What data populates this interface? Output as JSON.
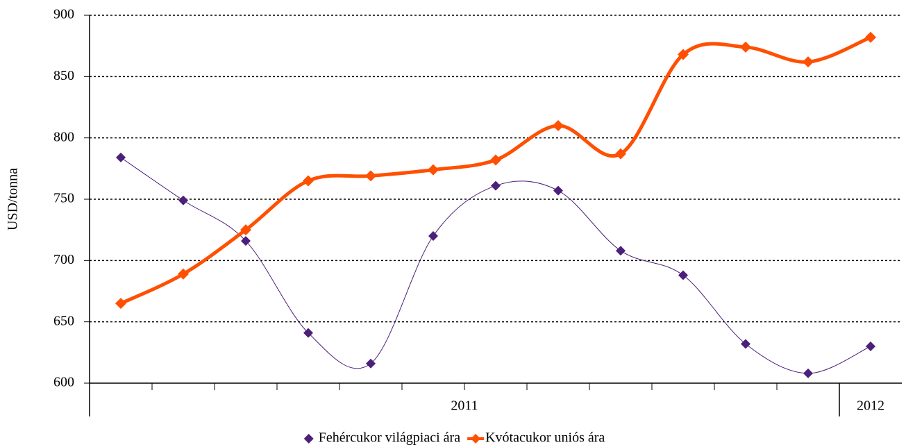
{
  "chart_data": {
    "type": "line",
    "y_label": "USD/tonna",
    "categories": [
      null,
      null,
      null,
      null,
      null,
      null,
      null,
      null,
      null,
      null,
      null,
      null,
      null
    ],
    "x_groups": [
      {
        "label": "2011",
        "count": 12
      },
      {
        "label": "2012",
        "count": 1
      }
    ],
    "series": [
      {
        "name": "Fehércukor világpiaci ára",
        "color": "#4b1f7a",
        "values": [
          784,
          749,
          716,
          641,
          616,
          720,
          761,
          757,
          708,
          688,
          632,
          608,
          630
        ]
      },
      {
        "name": "Kvótacukor uniós ára",
        "color": "#ff4f00",
        "values": [
          665,
          689,
          725,
          765,
          769,
          774,
          782,
          810,
          787,
          868,
          874,
          862,
          882
        ]
      }
    ],
    "ylim": [
      600,
      900
    ],
    "yticks": [
      600,
      650,
      700,
      750,
      800,
      850,
      900
    ],
    "grid": true,
    "smooth": true,
    "legend": "bottom"
  }
}
